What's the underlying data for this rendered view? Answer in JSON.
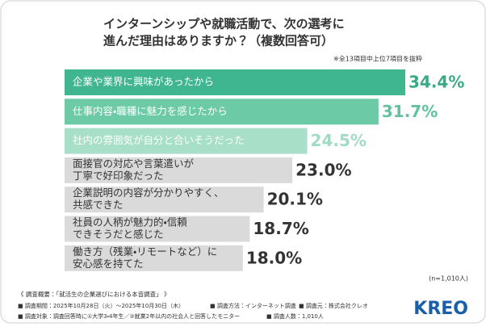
{
  "chart_data": {
    "type": "hbar",
    "title": [
      "インターンシップや就職活動で、次の選考に",
      "進んだ理由はありますか？（複数回答可）"
    ],
    "note": "※全13項目中上位7項目を抜粋",
    "categories": [
      [
        "企業や業界に興味があったから"
      ],
      [
        "仕事内容・職種に魅力を感じたから"
      ],
      [
        "社内の雰囲気が自分と合いそうだった"
      ],
      [
        "面接官の対応や言葉遣いが",
        "丁寧で好印象だった"
      ],
      [
        "企業説明の内容が分かりやすく、",
        "共感できた"
      ],
      [
        "社員の人柄が魅力的・信頼",
        "できそうだと感じた"
      ],
      [
        "働き方（残業・リモートなど）に",
        "安心感を持てた"
      ]
    ],
    "values": [
      34.4,
      31.7,
      24.5,
      23.0,
      20.1,
      18.7,
      18.0
    ],
    "value_labels": [
      "34.4%",
      "31.7%",
      "24.5%",
      "23.0%",
      "20.1%",
      "18.7%",
      "18.0%"
    ],
    "colors": [
      "#3fb590",
      "#6ccaa7",
      "#a8dfc9",
      "#dadada",
      "#dadada",
      "#dadada",
      "#dadada"
    ],
    "label_colors": [
      "#3aaa85",
      "#62c29f",
      "#a2dbc3",
      "#333333",
      "#333333",
      "#333333",
      "#333333"
    ],
    "sample": "(n=1,010人)"
  },
  "footer": {
    "heading": "《 調査概要：「就活生の企業選びにおける本音調査」 》",
    "line1": [
      "■ 調査期間：2025年10月28日（火）〜2025年10月30日（木）",
      "■ 調査方法：インターネット調査",
      "■ 調査元：株式会社クレオ"
    ],
    "line2": [
      "■ 調査対象：調査回答時に①大学3・4年生／②就業2年以内の社会人と回答したモニター",
      "■ 調査人数：1,010人"
    ],
    "logo": "KREO"
  }
}
